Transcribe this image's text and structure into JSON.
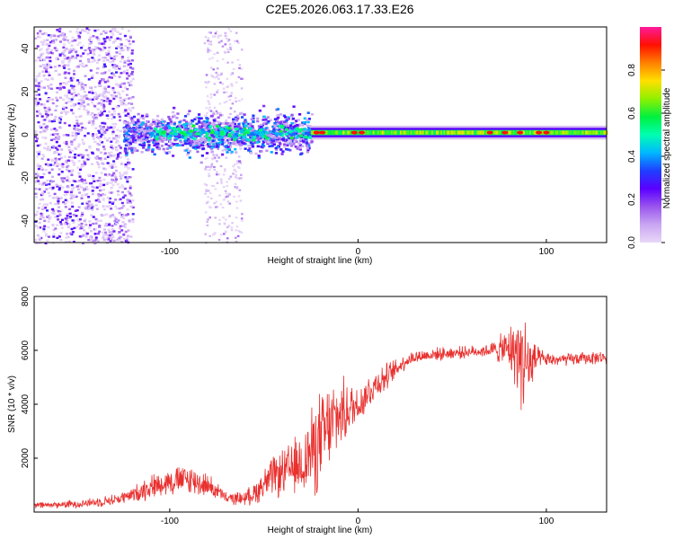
{
  "figure_title": "C2E5.2026.063.17.33.E26",
  "colors": {
    "snr_line": "#e8302e",
    "background": "#ffffff",
    "colormap": [
      "#e9d8f8",
      "#c9a6f2",
      "#9a55ee",
      "#5a00ff",
      "#1f3fff",
      "#00b8ff",
      "#00ffb0",
      "#00f040",
      "#90f000",
      "#ffe000",
      "#ff8000",
      "#ff1000",
      "#ff1a9b"
    ]
  },
  "chart_data": [
    {
      "type": "heatmap",
      "title": "",
      "xlabel": "Height of straight line (km)",
      "ylabel": "Frequency (Hz)",
      "xlim": [
        -172,
        132
      ],
      "ylim": [
        -50,
        50
      ],
      "xticks": [
        -100,
        0,
        100
      ],
      "xtick_labels": [
        "-100",
        "0",
        "100"
      ],
      "yticks": [
        -40,
        -20,
        0,
        20,
        40
      ],
      "ytick_labels": [
        "-40",
        "-20",
        "0",
        "20",
        "40"
      ],
      "grid": false,
      "colorbar": {
        "label": "Normalized spectral amplitude",
        "range": [
          0,
          1
        ],
        "ticks": [
          0.0,
          0.2,
          0.4,
          0.6,
          0.8
        ],
        "tick_labels": [
          "0.0",
          "0.2",
          "0.4",
          "0.6",
          "0.8"
        ]
      },
      "signal_band": {
        "center_hz": 1,
        "regions": [
          {
            "x_start": -172,
            "x_end": -120,
            "halfwidth_hz": 50,
            "peak_amp": 0.4,
            "description": "broadband noise"
          },
          {
            "x_start": -120,
            "x_end": -25,
            "halfwidth_hz": 8,
            "peak_amp": 0.5
          },
          {
            "x_start": -25,
            "x_end": 132,
            "halfwidth_hz": 2.5,
            "peak_amp": 0.95
          }
        ],
        "peak_points_x": [
          -22,
          -19,
          -2,
          2,
          70,
          78,
          86,
          96,
          100
        ]
      }
    },
    {
      "type": "line",
      "title": "",
      "xlabel": "Height of straight line (km)",
      "ylabel": "SNR (10 * v/v)",
      "xlim": [
        -172,
        132
      ],
      "ylim": [
        0,
        8000
      ],
      "xticks": [
        -100,
        0,
        100
      ],
      "xtick_labels": [
        "-100",
        "0",
        "100"
      ],
      "yticks": [
        2000,
        4000,
        6000,
        8000
      ],
      "ytick_labels": [
        "2000",
        "4000",
        "6000",
        "8000"
      ],
      "grid": false,
      "series": [
        {
          "name": "SNR",
          "x": [
            -172,
            -160,
            -150,
            -140,
            -130,
            -120,
            -115,
            -110,
            -100,
            -90,
            -80,
            -75,
            -70,
            -60,
            -55,
            -50,
            -45,
            -40,
            -35,
            -30,
            -25,
            -20,
            -15,
            -10,
            -5,
            0,
            5,
            10,
            15,
            20,
            25,
            30,
            40,
            50,
            60,
            70,
            80,
            85,
            88,
            92,
            95,
            100,
            110,
            120,
            132
          ],
          "mean": [
            250,
            270,
            300,
            360,
            450,
            620,
            800,
            950,
            1150,
            1200,
            1000,
            800,
            500,
            520,
            700,
            1050,
            1300,
            1450,
            1600,
            1800,
            2200,
            2600,
            3200,
            3600,
            3800,
            4000,
            4400,
            4800,
            5000,
            5300,
            5600,
            5750,
            5850,
            5900,
            5950,
            6000,
            6050,
            5900,
            5600,
            5400,
            5700,
            5650,
            5650,
            5700,
            5750
          ],
          "noise_amp": [
            150,
            150,
            180,
            200,
            250,
            300,
            500,
            500,
            600,
            700,
            500,
            400,
            250,
            300,
            500,
            700,
            900,
            1000,
            1200,
            1400,
            1900,
            2200,
            1900,
            1600,
            1200,
            900,
            800,
            700,
            600,
            450,
            350,
            300,
            280,
            280,
            250,
            300,
            900,
            1800,
            2400,
            1500,
            500,
            300,
            280,
            280,
            280
          ]
        }
      ]
    }
  ]
}
